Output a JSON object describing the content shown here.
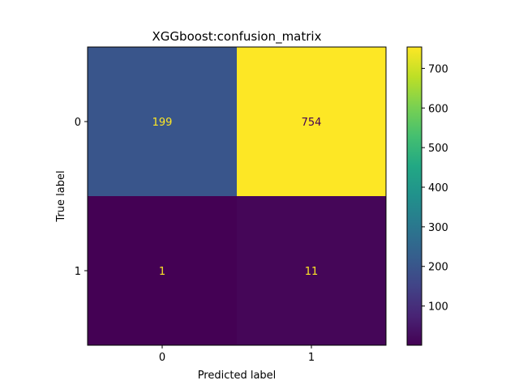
{
  "chart_data": {
    "type": "heatmap",
    "title": "XGGboost:confusion_matrix",
    "xlabel": "Predicted label",
    "ylabel": "True label",
    "x_categories": [
      "0",
      "1"
    ],
    "y_categories": [
      "0",
      "1"
    ],
    "values": [
      [
        199,
        754
      ],
      [
        1,
        11
      ]
    ],
    "colormap": "viridis",
    "vmin": 1,
    "vmax": 754,
    "colorbar_ticks": [
      100,
      200,
      300,
      400,
      500,
      600,
      700
    ],
    "cell_text_color_dark": "#fde725",
    "cell_text_color_light": "#440154",
    "grid": false
  }
}
